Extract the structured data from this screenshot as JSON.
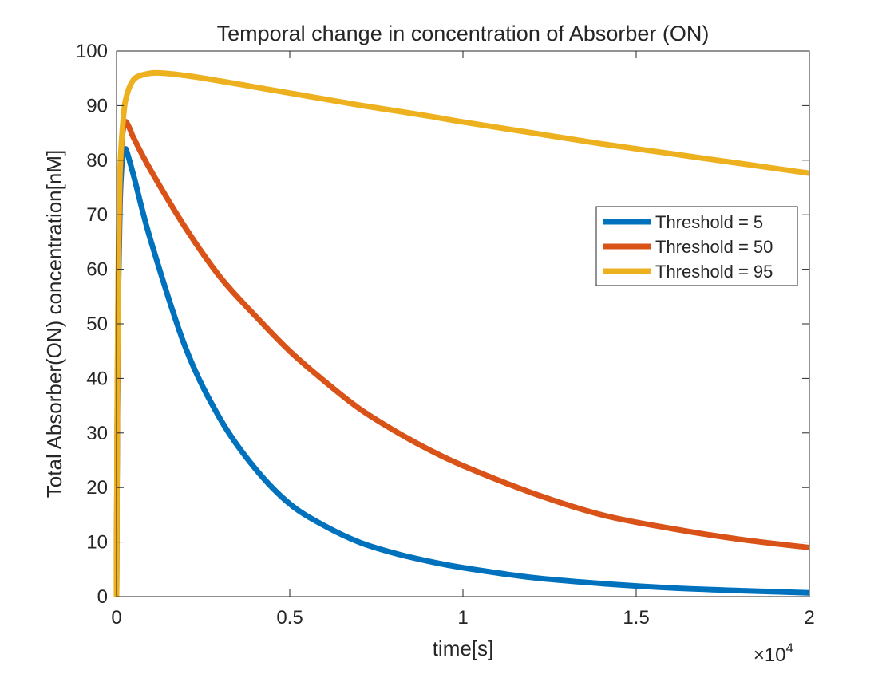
{
  "chart_data": {
    "type": "line",
    "title": "Temporal change in concentration of Absorber (ON)",
    "xlabel": "time[s]",
    "ylabel": "Total Absorber(ON) concentration[nM]",
    "x_exponent_label": "×10",
    "x_exponent_power": "4",
    "xlim": [
      0,
      20000
    ],
    "ylim": [
      0,
      100
    ],
    "x_ticks": [
      0,
      5000,
      10000,
      15000,
      20000
    ],
    "x_tick_labels": [
      "0",
      "0.5",
      "1",
      "1.5",
      "2"
    ],
    "y_ticks": [
      0,
      10,
      20,
      30,
      40,
      50,
      60,
      70,
      80,
      90,
      100
    ],
    "y_tick_labels": [
      "0",
      "10",
      "20",
      "30",
      "40",
      "50",
      "60",
      "70",
      "80",
      "90",
      "100"
    ],
    "grid": false,
    "legend_position": "right",
    "series": [
      {
        "name": "Threshold = 5",
        "color": "#0072bd",
        "x": [
          0,
          20,
          50,
          100,
          150,
          200,
          250,
          300,
          500,
          1000,
          2000,
          3000,
          4000,
          5000,
          6000,
          7000,
          8000,
          9000,
          10000,
          12000,
          14000,
          16000,
          18000,
          20000
        ],
        "y": [
          0,
          30,
          55,
          72,
          79,
          81.5,
          82,
          81.5,
          77,
          65,
          45.5,
          32.5,
          23.5,
          17,
          13,
          10,
          8,
          6.5,
          5.3,
          3.5,
          2.4,
          1.6,
          1.1,
          0.7
        ]
      },
      {
        "name": "Threshold = 50",
        "color": "#d95319",
        "x": [
          0,
          20,
          50,
          100,
          150,
          200,
          250,
          300,
          400,
          500,
          1000,
          2000,
          3000,
          4000,
          5000,
          6000,
          7000,
          8000,
          9000,
          10000,
          12000,
          14000,
          16000,
          18000,
          20000
        ],
        "y": [
          0,
          32,
          58,
          76,
          83,
          86,
          87,
          86.8,
          85.5,
          84,
          78,
          67.5,
          58.5,
          51.5,
          45,
          39.5,
          34.5,
          30.5,
          27,
          24,
          19,
          15,
          12.5,
          10.5,
          9
        ]
      },
      {
        "name": "Threshold = 95",
        "color": "#edb120",
        "x": [
          0,
          20,
          50,
          100,
          200,
          300,
          500,
          800,
          1200,
          2000,
          3000,
          4000,
          5000,
          6000,
          7000,
          8000,
          9000,
          10000,
          12000,
          14000,
          16000,
          18000,
          20000
        ],
        "y": [
          0,
          35,
          60,
          78,
          88,
          92,
          94.8,
          95.7,
          96,
          95.5,
          94.5,
          93.4,
          92.3,
          91.2,
          90.1,
          89.1,
          88.1,
          87,
          85,
          83,
          81.2,
          79.4,
          77.6
        ]
      }
    ]
  }
}
